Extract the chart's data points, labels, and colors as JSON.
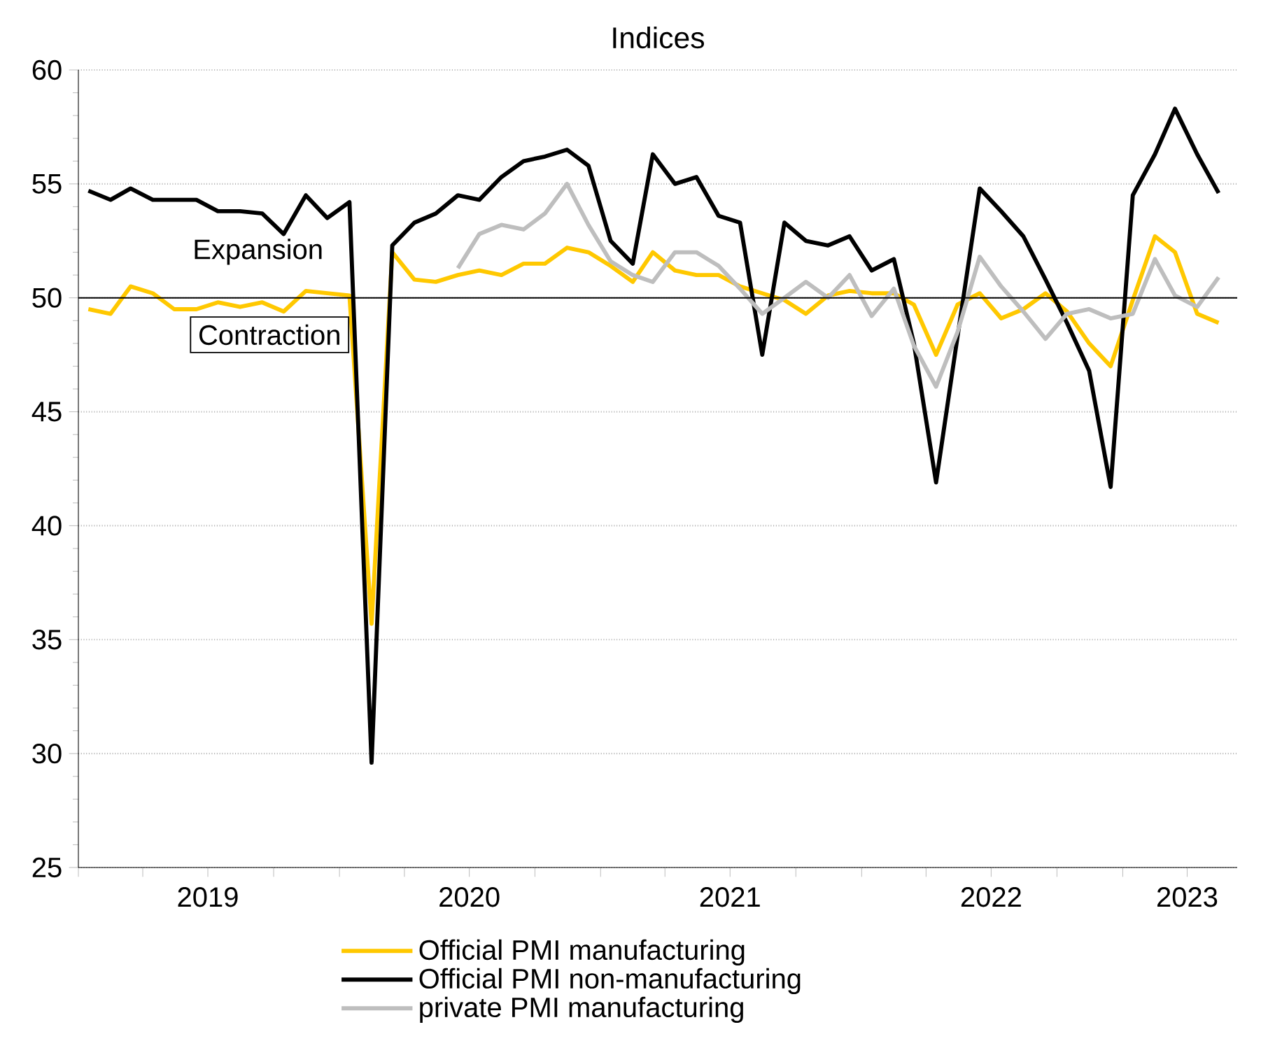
{
  "chart_data": {
    "type": "line",
    "title": "Indices",
    "x": [
      "2019-01-15",
      "2019-02-15",
      "2019-03-15",
      "2019-04-15",
      "2019-05-15",
      "2019-06-15",
      "2019-07-15",
      "2019-08-15",
      "2019-09-15",
      "2019-10-15",
      "2019-11-15",
      "2019-12-15",
      "2020-01-15",
      "2020-02-15",
      "2020-03-15",
      "2020-04-15",
      "2020-05-15",
      "2020-06-15",
      "2020-07-15",
      "2020-08-15",
      "2020-09-15",
      "2020-10-15",
      "2020-11-15",
      "2020-12-15",
      "2021-01-15",
      "2021-02-15",
      "2021-03-15",
      "2021-04-15",
      "2021-05-15",
      "2021-06-15",
      "2021-07-15",
      "2021-08-15",
      "2021-09-15",
      "2021-10-15",
      "2021-11-15",
      "2021-12-15",
      "2022-01-15",
      "2022-02-15",
      "2022-03-15",
      "2022-04-15",
      "2022-05-15",
      "2022-06-15",
      "2022-07-15",
      "2022-08-15",
      "2022-09-15",
      "2022-10-15",
      "2022-11-15",
      "2022-12-15",
      "2023-01-15",
      "2023-02-15",
      "2023-03-15",
      "2023-04-15",
      "2023-05-15"
    ],
    "series": [
      {
        "name": "Official PMI manufacturing",
        "color": "#ffc800",
        "values": [
          49.5,
          49.3,
          50.5,
          50.2,
          49.5,
          49.5,
          49.8,
          49.6,
          49.8,
          49.4,
          50.3,
          50.2,
          50.1,
          35.7,
          52.0,
          50.8,
          50.7,
          51.0,
          51.2,
          51.0,
          51.5,
          51.5,
          52.2,
          52.0,
          51.4,
          50.7,
          52.0,
          51.2,
          51.0,
          51.0,
          50.5,
          50.2,
          49.9,
          49.3,
          50.1,
          50.3,
          50.2,
          50.2,
          49.7,
          47.5,
          49.7,
          50.2,
          49.1,
          49.5,
          50.2,
          49.4,
          48.0,
          47.0,
          49.9,
          52.7,
          52.0,
          49.3,
          48.9
        ]
      },
      {
        "name": "Official PMI non-manufacturing",
        "color": "#000000",
        "values": [
          54.7,
          54.3,
          54.8,
          54.3,
          54.3,
          54.3,
          53.8,
          53.8,
          53.7,
          52.8,
          54.5,
          53.5,
          54.2,
          29.6,
          52.3,
          53.3,
          53.7,
          54.5,
          54.3,
          55.3,
          56.0,
          56.2,
          56.5,
          55.8,
          52.5,
          51.5,
          56.3,
          55.0,
          55.3,
          53.6,
          53.3,
          47.5,
          53.3,
          52.5,
          52.3,
          52.7,
          51.2,
          51.7,
          48.0,
          41.9,
          48.3,
          54.8,
          53.8,
          52.7,
          50.8,
          48.9,
          46.8,
          41.7,
          54.5,
          56.3,
          58.3,
          56.3,
          54.6
        ]
      },
      {
        "name": "private PMI manufacturing",
        "color": "#bebebe",
        "values": [
          null,
          null,
          null,
          null,
          null,
          null,
          null,
          null,
          null,
          null,
          null,
          null,
          null,
          null,
          null,
          null,
          null,
          51.3,
          52.8,
          53.2,
          53.0,
          53.7,
          55.0,
          53.2,
          51.6,
          51.0,
          50.7,
          52.0,
          52.0,
          51.4,
          50.4,
          49.3,
          50.0,
          50.7,
          50.0,
          51.0,
          49.2,
          50.4,
          47.9,
          46.1,
          48.5,
          51.8,
          50.5,
          49.4,
          48.2,
          49.3,
          49.5,
          49.1,
          49.3,
          51.7,
          50.1,
          49.6,
          50.9
        ]
      }
    ],
    "xlim": [
      "2019-01-01",
      "2023-06-10"
    ],
    "xticks": [
      {
        "value": "2019-01-01",
        "label": null
      },
      {
        "value": "2019-04-01",
        "label": null
      },
      {
        "value": "2019-07-01",
        "label": "2019"
      },
      {
        "value": "2019-10-01",
        "label": null
      },
      {
        "value": "2020-01-01",
        "label": null
      },
      {
        "value": "2020-04-01",
        "label": null
      },
      {
        "value": "2020-07-01",
        "label": "2020"
      },
      {
        "value": "2020-10-01",
        "label": null
      },
      {
        "value": "2021-01-01",
        "label": null
      },
      {
        "value": "2021-04-01",
        "label": null
      },
      {
        "value": "2021-07-01",
        "label": "2021"
      },
      {
        "value": "2021-10-01",
        "label": null
      },
      {
        "value": "2022-01-01",
        "label": null
      },
      {
        "value": "2022-04-01",
        "label": null
      },
      {
        "value": "2022-07-01",
        "label": "2022"
      },
      {
        "value": "2022-10-01",
        "label": null
      },
      {
        "value": "2023-01-01",
        "label": null
      },
      {
        "value": "2023-04-01",
        "label": "2023"
      }
    ],
    "ylim": [
      25,
      60
    ],
    "yticks": [
      25,
      30,
      35,
      40,
      45,
      50,
      55,
      60
    ],
    "grid": "y",
    "legend": "bottom",
    "ref_lines": [
      {
        "axis": "y",
        "value": 50
      }
    ],
    "annotations": [
      "Expansion",
      "Contraction"
    ]
  }
}
